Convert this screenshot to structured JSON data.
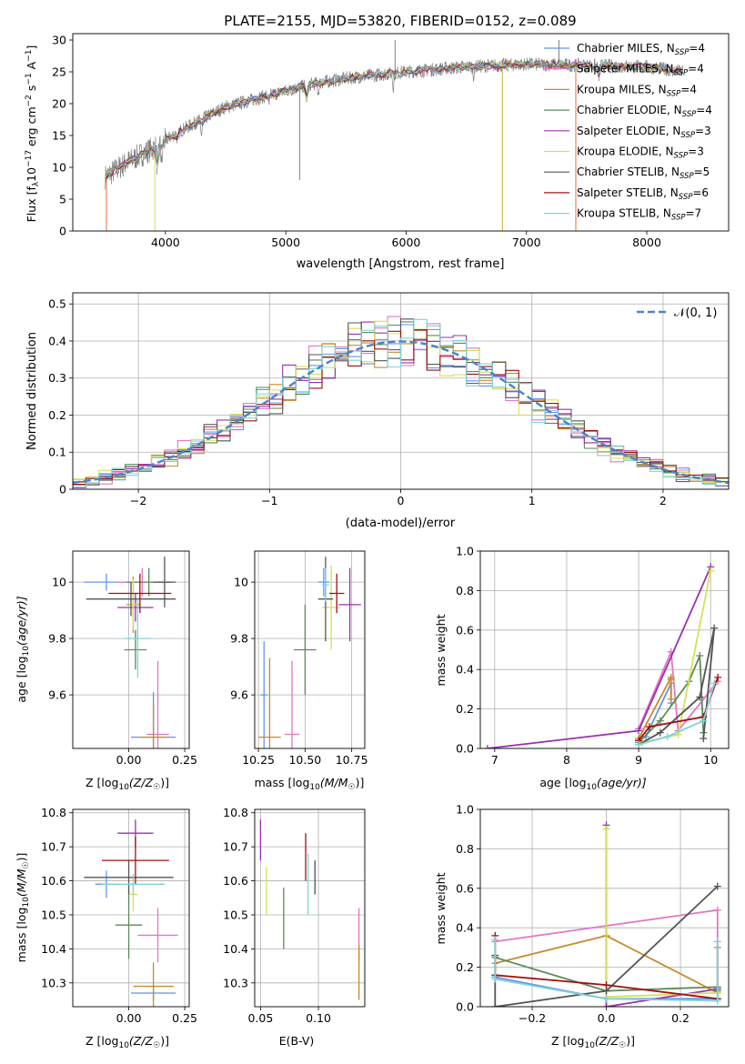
{
  "chart_data": [
    {
      "id": "spectrum",
      "type": "line",
      "title": "PLATE=2155, MJD=53820, FIBERID=0152, z=0.089",
      "xlabel": "wavelength [Angstrom, rest frame]",
      "ylabel": "Flux [f_λ 10^-17 erg cm^-2 s^-1 A^-1]",
      "ylabel_parts": {
        "a": "Flux [f",
        "b": "λ",
        "c": "10",
        "d": "−17",
        "e": " erg cm",
        "f": "−2",
        "g": " s",
        "h": "−1",
        "i": " A",
        "j": "−1",
        "k": "]"
      },
      "xlim": [
        3230,
        8680
      ],
      "ylim": [
        0,
        31
      ],
      "xticks": [
        4000,
        5000,
        6000,
        7000,
        8000
      ],
      "yticks": [
        0,
        5,
        10,
        15,
        20,
        25,
        30
      ],
      "legend": "top-right",
      "series": [
        {
          "name": "Chabrier MILES, N_SSP=4",
          "base": "Chabrier MILES, N",
          "sub": "SSP",
          "tail": "=4",
          "color": "#6495ed"
        },
        {
          "name": "Salpeter MILES, N_SSP=4",
          "base": "Salpeter MILES, N",
          "sub": "SSP",
          "tail": "=4",
          "color": "#e377c2"
        },
        {
          "name": "Kroupa MILES, N_SSP=4",
          "base": "Kroupa MILES, N",
          "sub": "SSP",
          "tail": "=4",
          "color": "#c88a2e"
        },
        {
          "name": "Chabrier ELODIE, N_SSP=4",
          "base": "Chabrier ELODIE, N",
          "sub": "SSP",
          "tail": "=4",
          "color": "#5a8a5a"
        },
        {
          "name": "Salpeter ELODIE, N_SSP=3",
          "base": "Salpeter ELODIE, N",
          "sub": "SSP",
          "tail": "=3",
          "color": "#9b30b0"
        },
        {
          "name": "Kroupa ELODIE, N_SSP=3",
          "base": "Kroupa ELODIE, N",
          "sub": "SSP",
          "tail": "=3",
          "color": "#d4e157"
        },
        {
          "name": "Chabrier STELIB, N_SSP=5",
          "base": "Chabrier STELIB, N",
          "sub": "SSP",
          "tail": "=5",
          "color": "#555555"
        },
        {
          "name": "Salpeter STELIB, N_SSP=6",
          "base": "Salpeter STELIB, N",
          "sub": "SSP",
          "tail": "=6",
          "color": "#a01010"
        },
        {
          "name": "Kroupa STELIB, N_SSP=7",
          "base": "Kroupa STELIB, N",
          "sub": "SSP",
          "tail": "=7",
          "color": "#7fd3d9"
        }
      ],
      "continuum": [
        [
          3500,
          8.5
        ],
        [
          3700,
          11
        ],
        [
          3900,
          13
        ],
        [
          4100,
          15.5
        ],
        [
          4300,
          17.5
        ],
        [
          4500,
          19.5
        ],
        [
          4800,
          21
        ],
        [
          5000,
          22
        ],
        [
          5200,
          23
        ],
        [
          5500,
          24
        ],
        [
          6000,
          25
        ],
        [
          6500,
          25.8
        ],
        [
          7000,
          26.2
        ],
        [
          7500,
          26
        ],
        [
          8000,
          25.8
        ],
        [
          8300,
          25
        ]
      ]
    },
    {
      "id": "residuals",
      "type": "line",
      "xlabel": "(data-model)/error",
      "ylabel": "Normed distribution",
      "xlim": [
        -2.5,
        2.5
      ],
      "ylim": [
        0,
        0.53
      ],
      "xticks": [
        -2,
        -1,
        0,
        1,
        2
      ],
      "yticks": [
        0.0,
        0.1,
        0.2,
        0.3,
        0.4,
        0.5
      ],
      "legend": "top-right",
      "normal_label": "𝒩(0, 1)",
      "normal_color": "#4a86c8",
      "bin_width": 0.1
    },
    {
      "id": "Z-age",
      "type": "scatter",
      "xlabel": "Z [log10(Z/Z☉)]",
      "xlabel_parts": {
        "a": "Z [log",
        "b": "10",
        "c": "(Z/Z",
        "d": "☉",
        "e": ")]"
      },
      "ylabel": "age [log10(age/yr)]",
      "ylabel_parts": {
        "a": "age  [log",
        "b": "10",
        "c": "(age/yr)]"
      },
      "xlim": [
        -0.25,
        0.27
      ],
      "ylim": [
        9.41,
        10.11
      ],
      "xticks": [
        0.0,
        0.25
      ],
      "xticklabels": [
        "0.00",
        "0.25"
      ],
      "yticks": [
        9.6,
        9.8,
        10.0
      ],
      "points": [
        {
          "x": -0.1,
          "y": 10.0,
          "xerr": 0.1,
          "yerr": 0.03,
          "series": 0
        },
        {
          "x": 0.11,
          "y": 9.45,
          "xerr": 0.1,
          "yerr": 0.16,
          "series": 0
        },
        {
          "x": 0.13,
          "y": 9.46,
          "xerr": 0.05,
          "yerr": 0.26,
          "series": 1
        },
        {
          "x": 0.06,
          "y": 10.0,
          "xerr": 0.12,
          "yerr": 0.05,
          "series": 1
        },
        {
          "x": 0.02,
          "y": 9.92,
          "xerr": 0.03,
          "yerr": 0.1,
          "series": 2
        },
        {
          "x": 0.11,
          "y": 9.45,
          "xerr": 0.06,
          "yerr": 0.12,
          "series": 2
        },
        {
          "x": 0.03,
          "y": 9.76,
          "xerr": 0.05,
          "yerr": 0.07,
          "series": 3
        },
        {
          "x": 0.09,
          "y": 10.0,
          "xerr": 0.1,
          "yerr": 0.05,
          "series": 3
        },
        {
          "x": 0.03,
          "y": 9.91,
          "xerr": 0.08,
          "yerr": 0.05,
          "series": 4
        },
        {
          "x": 0.02,
          "y": 9.92,
          "xerr": 0.02,
          "yerr": 0.09,
          "series": 5
        },
        {
          "x": 0.01,
          "y": 9.94,
          "xerr": 0.2,
          "yerr": 0.06,
          "series": 6
        },
        {
          "x": 0.16,
          "y": 10.0,
          "xerr": 0.05,
          "yerr": 0.09,
          "series": 6
        },
        {
          "x": 0.05,
          "y": 9.96,
          "xerr": 0.14,
          "yerr": 0.07,
          "series": 7
        },
        {
          "x": 0.04,
          "y": 9.8,
          "xerr": 0.06,
          "yerr": 0.14,
          "series": 8
        }
      ]
    },
    {
      "id": "mass-age",
      "type": "scatter",
      "xlabel": "mass [log10(M/M☉)]",
      "xlabel_parts": {
        "a": "mass [log",
        "b": "10",
        "c": "(M/M",
        "d": "☉",
        "e": ")]"
      },
      "xlim": [
        10.23,
        10.82
      ],
      "ylim": [
        9.41,
        10.11
      ],
      "xticks": [
        10.25,
        10.5,
        10.75
      ],
      "xticklabels": [
        "10.25",
        "10.50",
        "10.75"
      ],
      "yticks": [
        9.6,
        9.8,
        10.0
      ],
      "points": [
        {
          "x": 10.28,
          "y": 9.6,
          "xerr": 0.02,
          "yerr": 0.19,
          "series": 0
        },
        {
          "x": 10.6,
          "y": 10.0,
          "xerr": 0.03,
          "yerr": 0.05,
          "series": 0
        },
        {
          "x": 10.43,
          "y": 9.46,
          "xerr": 0.04,
          "yerr": 0.26,
          "series": 1
        },
        {
          "x": 10.31,
          "y": 9.45,
          "xerr": 0.06,
          "yerr": 0.28,
          "series": 2
        },
        {
          "x": 10.5,
          "y": 9.76,
          "xerr": 0.06,
          "yerr": 0.16,
          "series": 3
        },
        {
          "x": 10.74,
          "y": 9.92,
          "xerr": 0.06,
          "yerr": 0.13,
          "series": 4
        },
        {
          "x": 10.64,
          "y": 9.91,
          "xerr": 0.05,
          "yerr": 0.15,
          "series": 5
        },
        {
          "x": 10.61,
          "y": 9.94,
          "xerr": 0.04,
          "yerr": 0.15,
          "series": 6
        },
        {
          "x": 10.67,
          "y": 9.96,
          "xerr": 0.04,
          "yerr": 0.07,
          "series": 7
        },
        {
          "x": 10.61,
          "y": 9.99,
          "xerr": 0.02,
          "yerr": 0.06,
          "series": 8
        }
      ]
    },
    {
      "id": "age-weight",
      "type": "line",
      "xlabel": "age [log10(age/yr)]",
      "xlabel_parts": {
        "a": "age  [log",
        "b": "10",
        "c": "(age/yr)]"
      },
      "ylabel": "mass weight",
      "xlim": [
        6.8,
        10.25
      ],
      "ylim": [
        0,
        1
      ],
      "xticks": [
        7,
        8,
        9,
        10
      ],
      "yticks": [
        0.0,
        0.2,
        0.4,
        0.6,
        0.8,
        1.0
      ],
      "yticklabels": [
        "0.0",
        "0.2",
        "0.4",
        "0.6",
        "0.8",
        "1.0"
      ],
      "series": [
        {
          "series": 0,
          "points": [
            [
              9.0,
              0.04
            ],
            [
              9.1,
              0.06
            ],
            [
              9.45,
              0.33
            ],
            [
              9.45,
              0.23
            ]
          ]
        },
        {
          "series": 1,
          "points": [
            [
              9.0,
              0.1
            ],
            [
              9.45,
              0.49
            ],
            [
              9.55,
              0.09
            ],
            [
              10.1,
              0.34
            ]
          ]
        },
        {
          "series": 2,
          "points": [
            [
              9.0,
              0.05
            ],
            [
              9.45,
              0.36
            ],
            [
              9.45,
              0.35
            ],
            [
              9.45,
              0.25
            ]
          ]
        },
        {
          "series": 3,
          "points": [
            [
              9.0,
              0.03
            ],
            [
              9.3,
              0.14
            ],
            [
              9.7,
              0.34
            ],
            [
              9.85,
              0.47
            ],
            [
              9.9,
              0.08
            ]
          ]
        },
        {
          "series": 4,
          "points": [
            [
              6.9,
              0.0
            ],
            [
              9.0,
              0.09
            ],
            [
              10.0,
              0.92
            ]
          ]
        },
        {
          "series": 5,
          "points": [
            [
              9.05,
              0.03
            ],
            [
              9.55,
              0.07
            ],
            [
              10.0,
              0.9
            ]
          ]
        },
        {
          "series": 6,
          "points": [
            [
              9.0,
              0.02
            ],
            [
              9.3,
              0.08
            ],
            [
              9.85,
              0.26
            ],
            [
              10.05,
              0.61
            ],
            [
              9.9,
              0.05
            ]
          ]
        },
        {
          "series": 7,
          "points": [
            [
              9.0,
              0.04
            ],
            [
              9.15,
              0.11
            ],
            [
              9.9,
              0.16
            ],
            [
              10.1,
              0.36
            ]
          ]
        },
        {
          "series": 8,
          "points": [
            [
              9.0,
              0.02
            ],
            [
              9.4,
              0.06
            ],
            [
              9.9,
              0.14
            ],
            [
              10.05,
              0.33
            ]
          ]
        }
      ]
    },
    {
      "id": "Z-mass",
      "type": "scatter",
      "xlabel": "Z [log10(Z/Z☉)]",
      "xlabel_parts": {
        "a": "Z [log",
        "b": "10",
        "c": "(Z/Z",
        "d": "☉",
        "e": ")]"
      },
      "ylabel": "mass [log10(M/M☉)]",
      "ylabel_parts": {
        "a": "mass [log",
        "b": "10",
        "c": "(M/M",
        "d": "☉",
        "e": ")]"
      },
      "xlim": [
        -0.25,
        0.27
      ],
      "ylim": [
        10.23,
        10.81
      ],
      "xticks": [
        0.0,
        0.25
      ],
      "xticklabels": [
        "0.00",
        "0.25"
      ],
      "yticks": [
        10.3,
        10.4,
        10.5,
        10.6,
        10.7,
        10.8
      ],
      "yticklabels": [
        "10.3",
        "10.4",
        "10.5",
        "10.6",
        "10.7",
        "10.8"
      ],
      "points": [
        {
          "x": -0.1,
          "y": 10.59,
          "xerr": 0.05,
          "yerr": 0.04,
          "series": 0
        },
        {
          "x": 0.11,
          "y": 10.27,
          "xerr": 0.1,
          "yerr": 0.02,
          "series": 0
        },
        {
          "x": 0.13,
          "y": 10.44,
          "xerr": 0.09,
          "yerr": 0.08,
          "series": 1
        },
        {
          "x": 0.11,
          "y": 10.29,
          "xerr": 0.09,
          "yerr": 0.07,
          "series": 2
        },
        {
          "x": 0.0,
          "y": 10.47,
          "xerr": 0.06,
          "yerr": 0.1,
          "series": 3
        },
        {
          "x": 0.03,
          "y": 10.74,
          "xerr": 0.08,
          "yerr": 0.04,
          "series": 4
        },
        {
          "x": 0.02,
          "y": 10.56,
          "xerr": 0.02,
          "yerr": 0.05,
          "series": 5
        },
        {
          "x": 0.0,
          "y": 10.61,
          "xerr": 0.2,
          "yerr": 0.05,
          "series": 6
        },
        {
          "x": 0.03,
          "y": 10.66,
          "xerr": 0.15,
          "yerr": 0.07,
          "series": 7
        },
        {
          "x": 0.02,
          "y": 10.59,
          "xerr": 0.14,
          "yerr": 0.03,
          "series": 8
        }
      ]
    },
    {
      "id": "ebv-mass",
      "type": "scatter",
      "xlabel": "E(B-V)",
      "xlim": [
        0.045,
        0.14
      ],
      "ylim": [
        10.23,
        10.81
      ],
      "xticks": [
        0.05,
        0.1
      ],
      "xticklabels": [
        "0.05",
        "0.10"
      ],
      "yticks": [
        10.3,
        10.4,
        10.5,
        10.6,
        10.7,
        10.8
      ],
      "yticklabels": [
        "10.3",
        "10.4",
        "10.5",
        "10.6",
        "10.7",
        "10.8"
      ],
      "points": [
        {
          "x": 0.05,
          "y": 10.72,
          "xerr": 0.0,
          "yerr": 0.06,
          "series": 4
        },
        {
          "x": 0.055,
          "y": 10.57,
          "xerr": 0.0,
          "yerr": 0.07,
          "series": 5
        },
        {
          "x": 0.07,
          "y": 10.49,
          "xerr": 0.0,
          "yerr": 0.09,
          "series": 3
        },
        {
          "x": 0.089,
          "y": 10.67,
          "xerr": 0.0,
          "yerr": 0.07,
          "series": 7
        },
        {
          "x": 0.091,
          "y": 10.59,
          "xerr": 0.0,
          "yerr": 0.09,
          "series": 8
        },
        {
          "x": 0.097,
          "y": 10.61,
          "xerr": 0.0,
          "yerr": 0.05,
          "series": 6
        },
        {
          "x": 0.135,
          "y": 10.44,
          "xerr": 0.0,
          "yerr": 0.08,
          "series": 1
        },
        {
          "x": 0.135,
          "y": 10.33,
          "xerr": 0.0,
          "yerr": 0.08,
          "series": 2
        }
      ]
    },
    {
      "id": "Z-weight",
      "type": "line",
      "xlabel": "Z [log10(Z/Z☉)]",
      "xlabel_parts": {
        "a": "Z [log",
        "b": "10",
        "c": "(Z/Z",
        "d": "☉",
        "e": ")]"
      },
      "ylabel": "mass weight",
      "xlim": [
        -0.34,
        0.33
      ],
      "ylim": [
        0,
        1
      ],
      "xticks": [
        -0.2,
        0.0,
        0.2
      ],
      "xticklabels": [
        "−0.2",
        "0.0",
        "0.2"
      ],
      "yticks": [
        0.0,
        0.2,
        0.4,
        0.6,
        0.8,
        1.0
      ],
      "yticklabels": [
        "0.0",
        "0.2",
        "0.4",
        "0.6",
        "0.8",
        "1.0"
      ],
      "series": [
        {
          "series": 0,
          "points": [
            [
              -0.3,
              0.15
            ],
            [
              0.0,
              0.04
            ],
            [
              0.3,
              0.04
            ],
            [
              0.3,
              0.33
            ]
          ]
        },
        {
          "series": 1,
          "points": [
            [
              -0.3,
              0.33
            ],
            [
              0.3,
              0.49
            ],
            [
              0.3,
              0.09
            ]
          ]
        },
        {
          "series": 2,
          "points": [
            [
              -0.3,
              0.22
            ],
            [
              0.0,
              0.36
            ],
            [
              0.3,
              0.07
            ],
            [
              0.3,
              0.3
            ]
          ]
        },
        {
          "series": 3,
          "points": [
            [
              -0.3,
              0.25
            ],
            [
              0.0,
              0.08
            ],
            [
              0.3,
              0.1
            ],
            [
              0.3,
              0.08
            ]
          ]
        },
        {
          "series": 4,
          "points": [
            [
              0.0,
              0.92
            ],
            [
              0.0,
              0.0
            ],
            [
              0.3,
              0.09
            ]
          ]
        },
        {
          "series": 5,
          "points": [
            [
              0.0,
              0.9
            ],
            [
              0.0,
              0.05
            ],
            [
              0.3,
              0.07
            ]
          ]
        },
        {
          "series": 6,
          "points": [
            [
              -0.3,
              0.26
            ],
            [
              -0.3,
              0.0
            ],
            [
              0.0,
              0.08
            ],
            [
              0.3,
              0.61
            ]
          ]
        },
        {
          "series": 7,
          "points": [
            [
              -0.3,
              0.36
            ],
            [
              -0.3,
              0.16
            ],
            [
              0.0,
              0.11
            ],
            [
              0.3,
              0.04
            ]
          ]
        },
        {
          "series": 8,
          "points": [
            [
              -0.3,
              0.34
            ],
            [
              -0.3,
              0.14
            ],
            [
              0.0,
              0.04
            ],
            [
              0.3,
              0.03
            ],
            [
              0.3,
              0.33
            ]
          ]
        }
      ]
    }
  ]
}
